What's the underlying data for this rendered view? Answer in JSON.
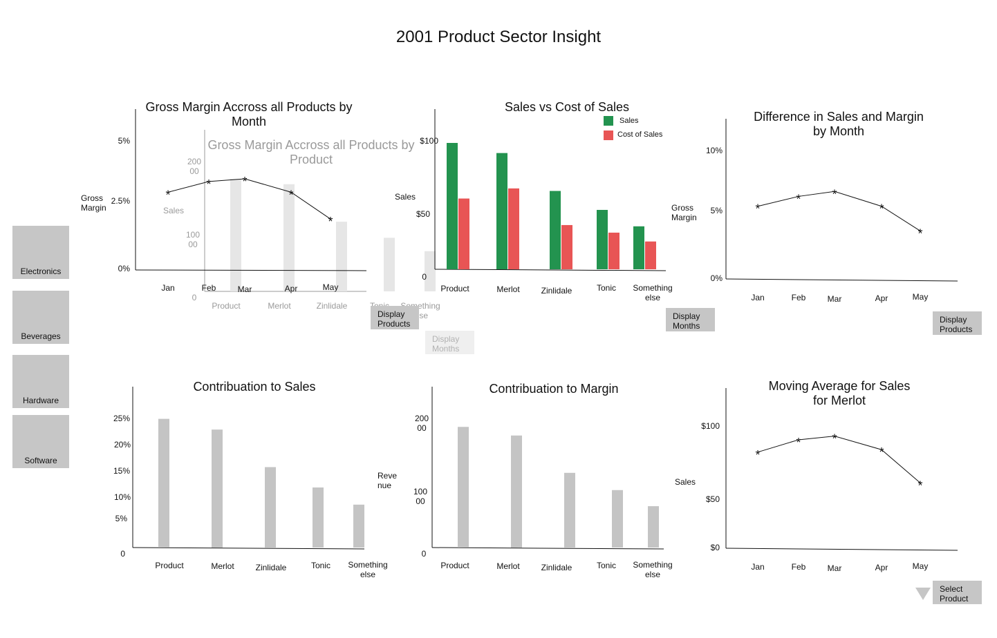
{
  "page_title": "2001 Product Sector Insight",
  "sidebar": [
    {
      "label": "Electronics"
    },
    {
      "label": "Beverages"
    },
    {
      "label": "Hardware"
    },
    {
      "label": "Software"
    }
  ],
  "buttons": {
    "display_products_1": "Display Products",
    "display_months_ghost": "Display Months",
    "display_months": "Display Months",
    "display_products_2": "Display Products",
    "select_product": "Select Product"
  },
  "colors": {
    "bar_gray": "#c4c4c4",
    "ghost_bar": "#e6e6e6",
    "sales_green": "#23934f",
    "cost_red": "#e85555"
  },
  "chart_data": [
    {
      "id": "gross_margin_month",
      "type": "line",
      "title": "Gross Margin Accross all Products by Month",
      "ylabel": "Gross Margin",
      "x": [
        "Jan",
        "Feb",
        "Mar",
        "Apr",
        "May"
      ],
      "yticks": [
        "5%",
        "2.5%",
        "0%"
      ],
      "ylim": [
        0,
        6
      ],
      "series": [
        {
          "values": [
            2.9,
            3.3,
            3.4,
            2.9,
            1.9
          ]
        }
      ]
    },
    {
      "id": "gross_margin_product_ghost",
      "type": "bar",
      "title": "Gross Margin Accross all Products by Product",
      "ylabel": "Sales",
      "categories": [
        "Product",
        "Merlot",
        "Zinlidale",
        "Tonic",
        "Something else"
      ],
      "yticks": [
        "200 00",
        "100 00",
        "0"
      ],
      "ylim": [
        0,
        25000
      ],
      "values": [
        21000,
        20000,
        13000,
        10000,
        7500
      ]
    },
    {
      "id": "sales_vs_cost",
      "type": "bar",
      "title": "Sales vs Cost of Sales",
      "ylabel": "Sales",
      "categories": [
        "Product",
        "Merlot",
        "Zinlidale",
        "Tonic",
        "Something else"
      ],
      "yticks": [
        "$100",
        "$50",
        "0"
      ],
      "ylim": [
        0,
        115
      ],
      "series": [
        {
          "name": "Sales",
          "values": [
            100,
            92,
            62,
            47,
            34
          ]
        },
        {
          "name": "Cost of Sales",
          "values": [
            56,
            64,
            35,
            29,
            22
          ]
        }
      ]
    },
    {
      "id": "diff_sales_margin",
      "type": "line",
      "title": "Difference in Sales and Margin by Month",
      "ylabel": "Gross Margin",
      "x": [
        "Jan",
        "Feb",
        "Mar",
        "Apr",
        "May"
      ],
      "yticks": [
        "10%",
        "5%",
        "0%"
      ],
      "ylim": [
        0,
        13
      ],
      "series": [
        {
          "values": [
            5.9,
            6.7,
            7.1,
            5.9,
            3.9
          ]
        }
      ]
    },
    {
      "id": "contribution_sales",
      "type": "bar",
      "title": "Contribuation to Sales",
      "ylabel": "Revenue",
      "categories": [
        "Product",
        "Merlot",
        "Zinlidale",
        "Tonic",
        "Something else"
      ],
      "yticks": [
        "25%",
        "20%",
        "15%",
        "10%",
        "5%",
        "0"
      ],
      "ylim": [
        0,
        30
      ],
      "values": [
        24,
        22,
        15,
        11.2,
        8
      ]
    },
    {
      "id": "contribution_margin",
      "type": "bar",
      "title": "Contribuation to Margin",
      "categories": [
        "Product",
        "Merlot",
        "Zinlidale",
        "Tonic",
        "Something else"
      ],
      "yticks": [
        "200 00",
        "100 00",
        "0"
      ],
      "ylim": [
        0,
        28000
      ],
      "values": [
        21000,
        19500,
        13000,
        10000,
        7200
      ]
    },
    {
      "id": "moving_average",
      "type": "line",
      "title": "Moving Average for Sales for Merlot",
      "ylabel": "Sales",
      "x": [
        "Jan",
        "Feb",
        "Mar",
        "Apr",
        "May"
      ],
      "yticks": [
        "$100",
        "$50",
        "$0"
      ],
      "ylim": [
        0,
        130
      ],
      "series": [
        {
          "values": [
            78,
            88,
            91,
            80,
            53
          ]
        }
      ]
    }
  ]
}
